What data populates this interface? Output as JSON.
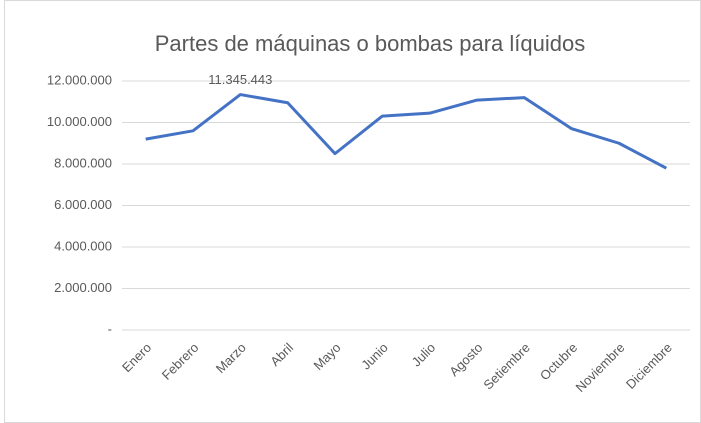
{
  "chart_data": {
    "type": "line",
    "title": "Partes de  máquinas o bombas para líquidos",
    "categories": [
      "Enero",
      "Febrero",
      "Marzo",
      "Abril",
      "Mayo",
      "Junio",
      "Julio",
      "Agosto",
      "Setiembre",
      "Octubre",
      "Noviembre",
      "Diciembre"
    ],
    "values": [
      9200000,
      9600000,
      11345443,
      10950000,
      8500000,
      10310000,
      10450000,
      11080000,
      11200000,
      9700000,
      9000000,
      7800000
    ],
    "value_labels": [
      null,
      null,
      "11.345.443",
      null,
      null,
      null,
      null,
      null,
      null,
      null,
      null,
      null
    ],
    "color": "#4472c4",
    "ylim": [
      0,
      12000000
    ],
    "yticks": [
      {
        "value": 0,
        "label": "-"
      },
      {
        "value": 2000000,
        "label": "2.000.000"
      },
      {
        "value": 4000000,
        "label": "4.000.000"
      },
      {
        "value": 6000000,
        "label": "6.000.000"
      },
      {
        "value": 8000000,
        "label": "8.000.000"
      },
      {
        "value": 10000000,
        "label": "10.000.000"
      },
      {
        "value": 12000000,
        "label": "12.000.000"
      }
    ],
    "grid": true
  }
}
